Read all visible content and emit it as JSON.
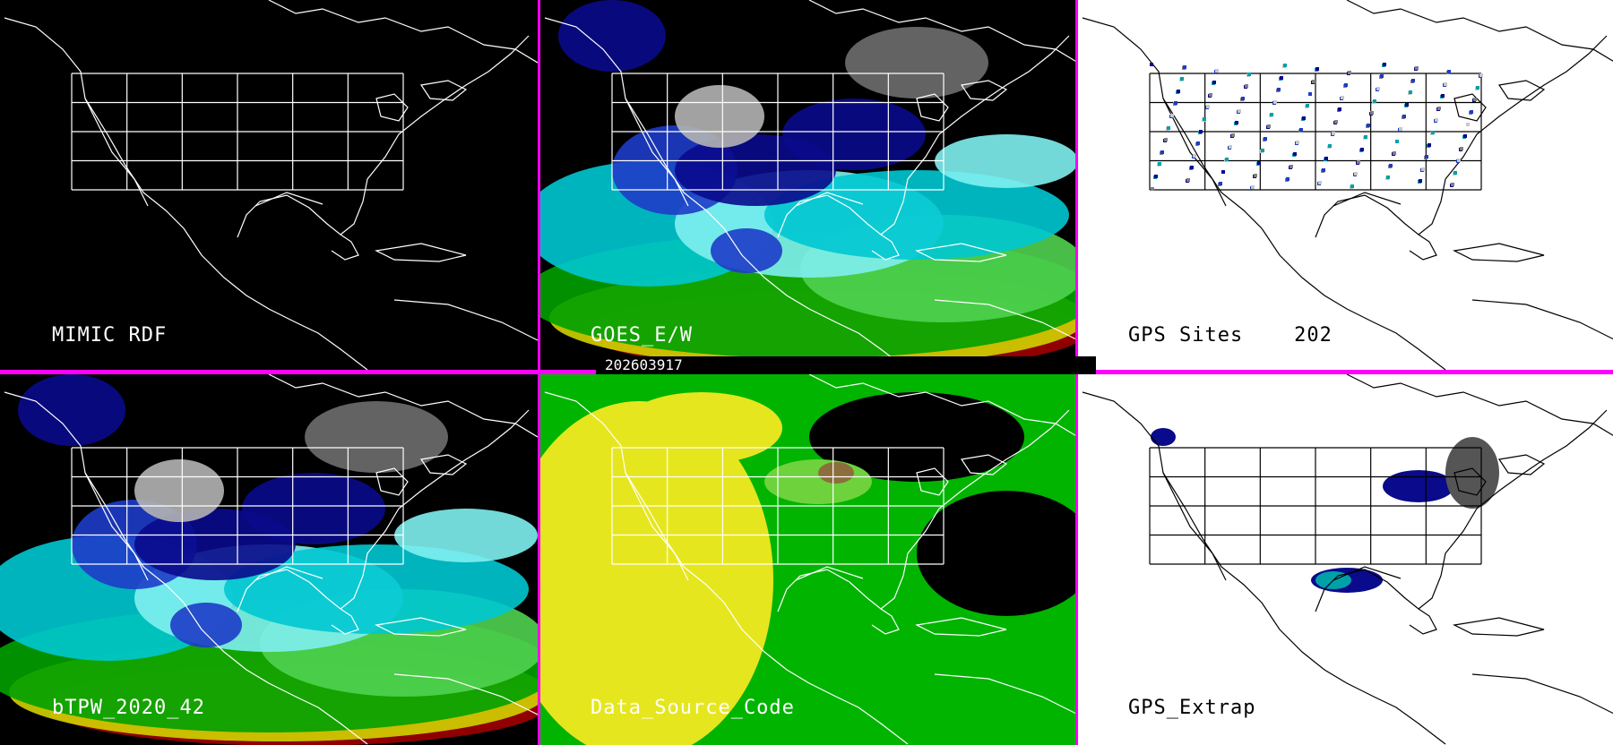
{
  "panels": [
    {
      "id": "mimic-rdf",
      "label": "MIMIC RDF",
      "theme": "dark"
    },
    {
      "id": "goes-ew",
      "label": "GOES_E/W",
      "theme": "dark"
    },
    {
      "id": "gps-sites",
      "label": "GPS Sites    202",
      "theme": "light"
    },
    {
      "id": "btpw",
      "label": "bTPW_2020_42",
      "theme": "dark"
    },
    {
      "id": "data-source-code",
      "label": "Data_Source_Code",
      "theme": "dark"
    },
    {
      "id": "gps-extrap",
      "label": "GPS_Extrap",
      "theme": "light"
    }
  ],
  "timestamp": "202603917",
  "colors": {
    "divider": "#ff00ff",
    "dark_bg": "#000000",
    "light_bg": "#ffffff",
    "tpw_palette": [
      "#6e6e6e",
      "#b4b4b4",
      "#0a0a8c",
      "#1e3cc8",
      "#00c8d2",
      "#7ff0f0",
      "#00a000",
      "#50d250",
      "#d2d200",
      "#a00000"
    ],
    "source_palette": [
      "#e6e61e",
      "#00b400",
      "#6ed23c",
      "#8c6e3c"
    ]
  }
}
